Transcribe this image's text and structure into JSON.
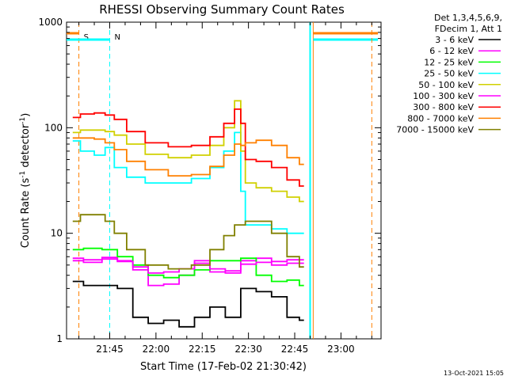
{
  "chart_data": {
    "type": "line",
    "title": "RHESSI Observing Summary Count Rates",
    "xlabel": "Start Time (17-Feb-02 21:30:42)",
    "ylabel_main": "Count Rate (s",
    "ylabel_sup1": "-1",
    "ylabel_mid": " detector",
    "ylabel_sup2": "-1",
    "ylabel_end": ")",
    "yscale": "log",
    "ylim": [
      1,
      1000
    ],
    "xlim": [
      "21:31",
      "23:13"
    ],
    "x_ticks": [
      "21:45",
      "22:00",
      "22:15",
      "22:30",
      "22:45",
      "23:00"
    ],
    "y_ticks": [
      "1",
      "10",
      "100",
      "1000"
    ],
    "legend_header": [
      "Det 1,3,4,5,6,9,",
      "FDecim 1, Att 1"
    ],
    "legend_placement": "outside-right",
    "markers": [
      {
        "label": "S",
        "time": "21:35",
        "color": "#ff8000"
      },
      {
        "label": "N",
        "time": "21:45",
        "color": "#00ffff"
      }
    ],
    "footer_date": "13-Oct-2021 15:05",
    "series": [
      {
        "name": "3 - 6 keV",
        "color": "#000000",
        "x": [
          "21:33",
          "21:40",
          "21:45",
          "21:50",
          "21:55",
          "22:00",
          "22:05",
          "22:10",
          "22:15",
          "22:20",
          "22:25",
          "22:30",
          "22:35",
          "22:40",
          "22:45",
          "22:48"
        ],
        "values": [
          3.5,
          3.2,
          3.2,
          3.0,
          1.6,
          1.4,
          1.5,
          1.3,
          1.6,
          2.0,
          1.6,
          3.0,
          2.8,
          2.5,
          1.6,
          1.5
        ]
      },
      {
        "name": "6 - 12 keV",
        "color": "#ff00ff",
        "x": [
          "21:33",
          "21:40",
          "21:45",
          "21:50",
          "21:55",
          "22:00",
          "22:05",
          "22:10",
          "22:15",
          "22:20",
          "22:25",
          "22:30",
          "22:35",
          "22:40",
          "22:45",
          "22:48"
        ],
        "values": [
          5.8,
          5.6,
          5.9,
          5.5,
          4.5,
          3.2,
          3.3,
          4.0,
          5.5,
          4.3,
          4.2,
          5.5,
          5.8,
          5.4,
          5.6,
          5.6
        ]
      },
      {
        "name": "12 - 25 keV",
        "color": "#00ff00",
        "x": [
          "21:33",
          "21:40",
          "21:45",
          "21:50",
          "21:55",
          "22:00",
          "22:05",
          "22:10",
          "22:15",
          "22:20",
          "22:25",
          "22:30",
          "22:35",
          "22:40",
          "22:45",
          "22:48"
        ],
        "values": [
          7.0,
          7.2,
          7.0,
          6.0,
          5.0,
          4.0,
          3.8,
          4.0,
          4.5,
          5.5,
          5.5,
          5.8,
          4.0,
          3.5,
          3.6,
          3.2
        ]
      },
      {
        "name": "25 - 50 keV",
        "color": "#00ffff",
        "x": [
          "21:33",
          "21:38",
          "21:42",
          "21:45",
          "21:48",
          "21:53",
          "22:00",
          "22:08",
          "22:15",
          "22:20",
          "22:24",
          "22:27",
          "22:28",
          "22:30",
          "22:35",
          "22:40",
          "22:45",
          "22:48"
        ],
        "values": [
          75,
          60,
          55,
          65,
          42,
          34,
          30,
          30,
          33,
          42,
          60,
          90,
          25,
          12,
          12,
          11,
          10,
          10
        ]
      },
      {
        "name": "50 - 100 keV",
        "color": "#d0d000",
        "x": [
          "21:33",
          "21:38",
          "21:42",
          "21:45",
          "21:48",
          "21:53",
          "22:00",
          "22:08",
          "22:15",
          "22:20",
          "22:24",
          "22:27",
          "22:28",
          "22:30",
          "22:35",
          "22:40",
          "22:45",
          "22:48"
        ],
        "values": [
          90,
          95,
          95,
          92,
          85,
          70,
          56,
          52,
          55,
          68,
          100,
          180,
          60,
          30,
          27,
          25,
          22,
          20
        ]
      },
      {
        "name": "100 - 300 keV",
        "color": "#ff00ff",
        "x": [
          "21:33",
          "21:40",
          "21:45",
          "21:50",
          "21:55",
          "22:00",
          "22:05",
          "22:10",
          "22:15",
          "22:20",
          "22:25",
          "22:30",
          "22:35",
          "22:40",
          "22:45",
          "22:48"
        ],
        "values": [
          5.5,
          5.3,
          5.7,
          5.4,
          4.8,
          4.2,
          4.3,
          4.6,
          5.2,
          4.6,
          4.4,
          5.1,
          5.3,
          5.0,
          5.2,
          5.2
        ]
      },
      {
        "name": "300 - 800 keV",
        "color": "#ff0000",
        "x": [
          "21:33",
          "21:38",
          "21:42",
          "21:45",
          "21:48",
          "21:53",
          "22:00",
          "22:08",
          "22:15",
          "22:20",
          "22:24",
          "22:27",
          "22:28",
          "22:30",
          "22:35",
          "22:40",
          "22:45",
          "22:48"
        ],
        "values": [
          125,
          135,
          138,
          132,
          120,
          92,
          72,
          66,
          68,
          82,
          110,
          150,
          110,
          50,
          48,
          42,
          32,
          28
        ]
      },
      {
        "name": "800 - 7000 keV",
        "color": "#ff8000",
        "x": [
          "21:33",
          "21:38",
          "21:42",
          "21:45",
          "21:48",
          "21:53",
          "22:00",
          "22:08",
          "22:15",
          "22:20",
          "22:24",
          "22:27",
          "22:28",
          "22:30",
          "22:35",
          "22:40",
          "22:45",
          "22:48"
        ],
        "values": [
          80,
          80,
          78,
          72,
          62,
          48,
          40,
          35,
          36,
          43,
          55,
          70,
          68,
          72,
          76,
          68,
          52,
          45
        ]
      },
      {
        "name": "7000 - 15000 keV",
        "color": "#808000",
        "x": [
          "21:33",
          "21:38",
          "21:42",
          "21:45",
          "21:48",
          "21:53",
          "22:00",
          "22:08",
          "22:15",
          "22:20",
          "22:24",
          "22:27",
          "22:28",
          "22:30",
          "22:35",
          "22:40",
          "22:45",
          "22:48"
        ],
        "values": [
          13,
          15,
          15,
          13,
          10,
          7,
          5,
          4.6,
          5.0,
          7,
          9.5,
          12,
          12,
          13,
          13,
          10,
          6,
          4.8
        ]
      }
    ]
  }
}
